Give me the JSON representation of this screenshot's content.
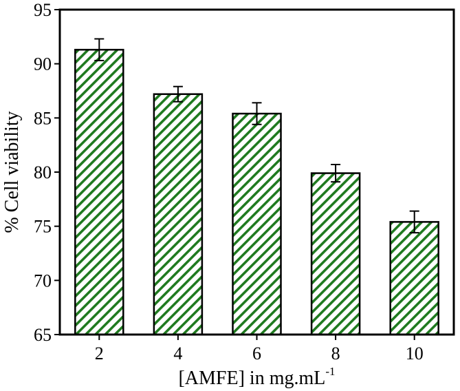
{
  "chart_data": {
    "type": "bar",
    "title": "",
    "categories": [
      "2",
      "4",
      "6",
      "8",
      "10"
    ],
    "values": [
      91.3,
      87.2,
      85.4,
      79.9,
      75.4
    ],
    "errors": [
      1.0,
      0.7,
      1.0,
      0.8,
      1.0
    ],
    "xlabel_main": "[AMFE] in mg.mL",
    "xlabel_sup": "-1",
    "ylabel": "% Cell viability",
    "ylim": [
      65,
      95
    ],
    "yticks": [
      65,
      70,
      75,
      80,
      85,
      90,
      95
    ],
    "grid": false,
    "legend": "none",
    "bar_fill": "hatched diagonal",
    "colors": {
      "hatch": "#1f7a1f",
      "bar_edge": "#000000",
      "axis": "#000000",
      "error_bar": "#000000"
    }
  }
}
